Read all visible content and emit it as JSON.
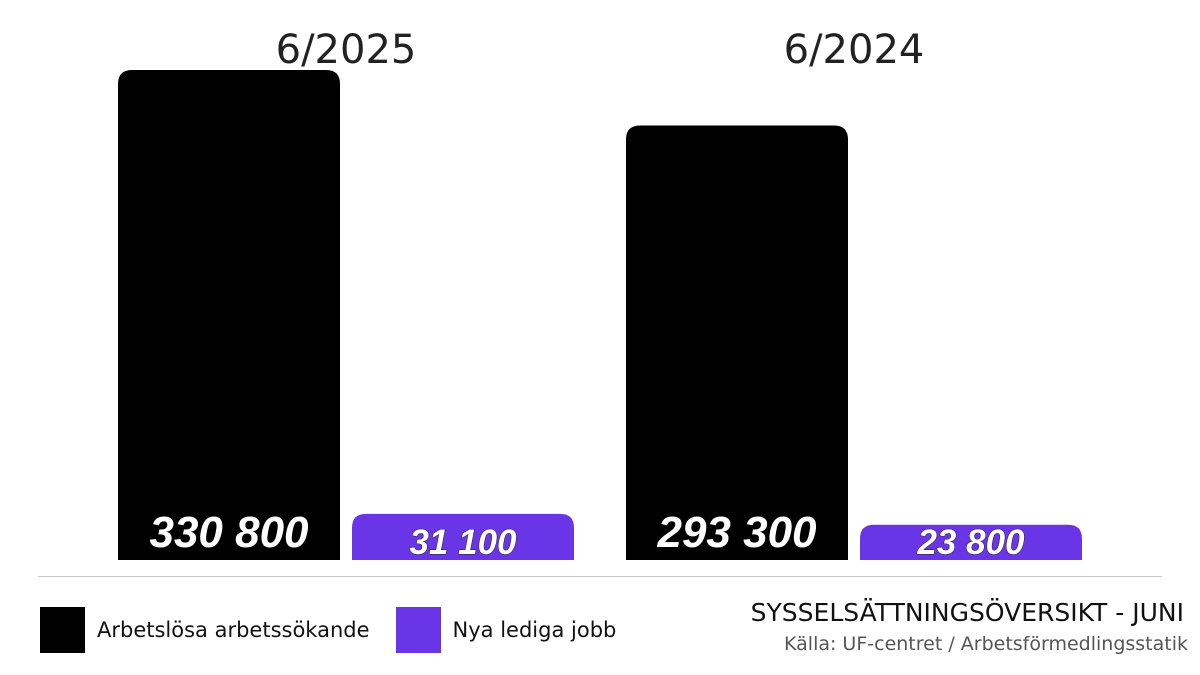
{
  "chart_data": {
    "type": "bar",
    "categories": [
      "6/2025",
      "6/2024"
    ],
    "series": [
      {
        "name": "Arbetslösa arbetssökande",
        "values": [
          330800,
          293300
        ],
        "labels": [
          "330 800",
          "293 300"
        ],
        "color": "#000000"
      },
      {
        "name": "Nya lediga jobb",
        "values": [
          31100,
          23800
        ],
        "labels": [
          "31 100",
          "23 800"
        ],
        "color": "#6a35e6"
      }
    ],
    "ylim": [
      0,
      330800
    ],
    "grid": false,
    "legend_placement": "bottom-left"
  },
  "footer": {
    "title": "SYSSELSÄTTNINGSÖVERSIKT - JUNI",
    "source": "Källa: UF-centret / Arbetsförmedlingsstatik"
  }
}
